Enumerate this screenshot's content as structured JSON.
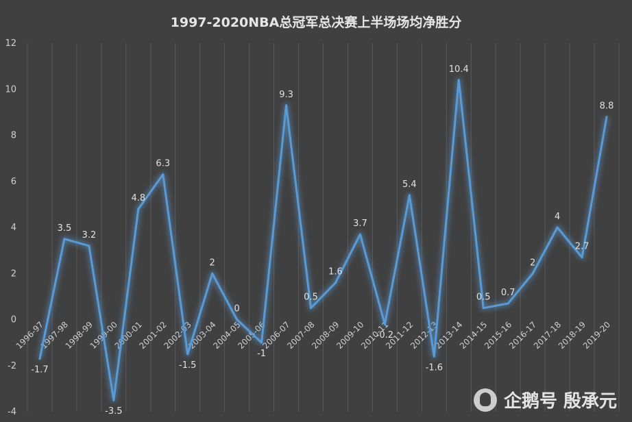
{
  "chart_data": {
    "type": "line",
    "title": "1997-2020NBA总冠军总决赛上半场场均净胜分",
    "categories": [
      "1996-97",
      "1997-98",
      "1998-99",
      "1999-00",
      "2000-01",
      "2001-02",
      "2002-03",
      "2003-04",
      "2004-05",
      "2005-06",
      "2006-07",
      "2007-08",
      "2008-09",
      "2009-10",
      "2010-11",
      "2011-12",
      "2012-13",
      "2013-14",
      "2014-15",
      "2015-16",
      "2016-17",
      "2017-18",
      "2018-19",
      "2019-20"
    ],
    "values": [
      -1.7,
      3.5,
      3.2,
      -3.5,
      4.8,
      6.3,
      -1.5,
      2,
      0,
      -1,
      9.3,
      0.5,
      1.6,
      3.7,
      -0.2,
      5.4,
      -1.6,
      10.4,
      0.5,
      0.7,
      2,
      4,
      2.7,
      8.8
    ],
    "ylim": [
      -4,
      12
    ],
    "yticks": [
      -4,
      -2,
      0,
      2,
      4,
      6,
      8,
      10,
      12
    ],
    "grid": "vertical",
    "line_color": "#5b9bd5",
    "background": "#404040"
  },
  "watermark": {
    "icon": "penguin-icon",
    "text": "企鹅号 殷承元"
  }
}
